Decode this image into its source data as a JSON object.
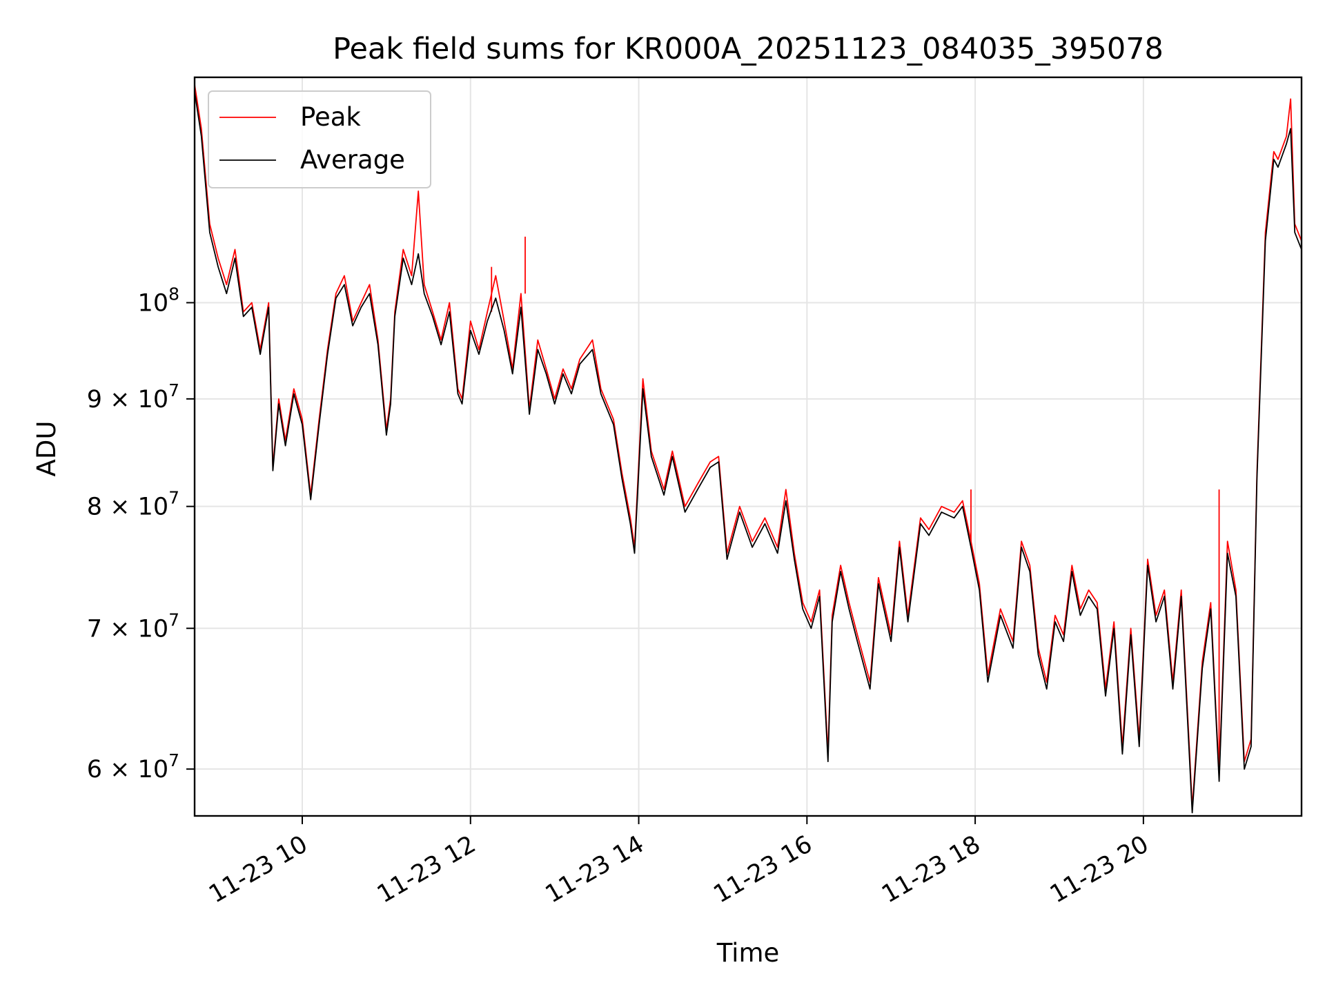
{
  "chart_data": {
    "type": "line",
    "title": "Peak field sums for KR000A_20251123_084035_395078",
    "xlabel": "Time",
    "ylabel": "ADU",
    "yscale": "log",
    "grid": true,
    "legend_position": "upper-left",
    "x_range_hours": [
      8.72,
      21.88
    ],
    "y_range": [
      57000000,
      128000000
    ],
    "x_ticks": [
      {
        "value": 10,
        "label": "11-23 10"
      },
      {
        "value": 12,
        "label": "11-23 12"
      },
      {
        "value": 14,
        "label": "11-23 14"
      },
      {
        "value": 16,
        "label": "11-23 16"
      },
      {
        "value": 18,
        "label": "11-23 18"
      },
      {
        "value": 20,
        "label": "11-23 20"
      }
    ],
    "y_ticks": [
      {
        "value": 60000000,
        "mantissa": "6",
        "exponent": "7"
      },
      {
        "value": 70000000,
        "mantissa": "7",
        "exponent": "7"
      },
      {
        "value": 80000000,
        "mantissa": "8",
        "exponent": "7"
      },
      {
        "value": 90000000,
        "mantissa": "9",
        "exponent": "7"
      },
      {
        "value": 100000000,
        "mantissa": "",
        "exponent": "8"
      }
    ],
    "x_hours": [
      8.72,
      8.8,
      8.9,
      9.0,
      9.1,
      9.2,
      9.3,
      9.4,
      9.5,
      9.6,
      9.65,
      9.72,
      9.8,
      9.9,
      10.0,
      10.1,
      10.2,
      10.3,
      10.4,
      10.5,
      10.6,
      10.7,
      10.8,
      10.9,
      11.0,
      11.05,
      11.1,
      11.2,
      11.3,
      11.38,
      11.45,
      11.55,
      11.65,
      11.75,
      11.85,
      11.9,
      12.0,
      12.1,
      12.2,
      12.3,
      12.4,
      12.5,
      12.6,
      12.7,
      12.8,
      12.9,
      13.0,
      13.1,
      13.2,
      13.3,
      13.45,
      13.55,
      13.7,
      13.8,
      13.9,
      13.95,
      14.05,
      14.15,
      14.3,
      14.4,
      14.55,
      14.7,
      14.85,
      14.95,
      15.05,
      15.2,
      15.35,
      15.5,
      15.65,
      15.75,
      15.85,
      15.95,
      16.05,
      16.15,
      16.25,
      16.3,
      16.4,
      16.5,
      16.6,
      16.75,
      16.85,
      17.0,
      17.1,
      17.2,
      17.35,
      17.45,
      17.6,
      17.75,
      17.85,
      17.95,
      18.05,
      18.15,
      18.3,
      18.45,
      18.55,
      18.65,
      18.75,
      18.85,
      18.95,
      19.05,
      19.15,
      19.25,
      19.35,
      19.45,
      19.55,
      19.65,
      19.75,
      19.85,
      19.95,
      20.05,
      20.15,
      20.25,
      20.35,
      20.45,
      20.55,
      20.58,
      20.7,
      20.8,
      20.9,
      21.0,
      21.1,
      21.2,
      21.28,
      21.35,
      21.45,
      21.55,
      21.6,
      21.7,
      21.75,
      21.8,
      21.88
    ],
    "series": [
      {
        "name": "Peak",
        "color": "#ff0000",
        "values": [
          127000000,
          121000000,
          109000000,
          105000000,
          102000000,
          106000000,
          99000000,
          100000000,
          95000000,
          100000000,
          83500000,
          90000000,
          86000000,
          91000000,
          88000000,
          81000000,
          88000000,
          95000000,
          101000000,
          103000000,
          98000000,
          100000000,
          102000000,
          96000000,
          87000000,
          90000000,
          99000000,
          106000000,
          103000000,
          113000000,
          102000000,
          99000000,
          96000000,
          100000000,
          91000000,
          90000000,
          98000000,
          95000000,
          99000000,
          103000000,
          98000000,
          93000000,
          101000000,
          89000000,
          96000000,
          93000000,
          90000000,
          93000000,
          91000000,
          94000000,
          96000000,
          91000000,
          88000000,
          83000000,
          79000000,
          76500000,
          92000000,
          85000000,
          81500000,
          85000000,
          80000000,
          82000000,
          84000000,
          84500000,
          76000000,
          80000000,
          77000000,
          79000000,
          76500000,
          81500000,
          76000000,
          72000000,
          70500000,
          73000000,
          61000000,
          71000000,
          75000000,
          72000000,
          69500000,
          66000000,
          74000000,
          69500000,
          77000000,
          71000000,
          79000000,
          78000000,
          80000000,
          79500000,
          80500000,
          77000000,
          73500000,
          66500000,
          71500000,
          69000000,
          77000000,
          75000000,
          68500000,
          66000000,
          71000000,
          69500000,
          75000000,
          71500000,
          73000000,
          72000000,
          65500000,
          70500000,
          61500000,
          70000000,
          62000000,
          75500000,
          71000000,
          73000000,
          66000000,
          73000000,
          61000000,
          57500000,
          67500000,
          72000000,
          59500000,
          77000000,
          73000000,
          60500000,
          62000000,
          83000000,
          108000000,
          118000000,
          117000000,
          120000000,
          125000000,
          109000000,
          107000000
        ],
        "spikes": [
          {
            "x": 11.38,
            "y": 113000000
          },
          {
            "x": 12.25,
            "y": 104000000
          },
          {
            "x": 12.65,
            "y": 107500000
          },
          {
            "x": 17.95,
            "y": 81500000
          },
          {
            "x": 20.9,
            "y": 81500000
          }
        ]
      },
      {
        "name": "Average",
        "color": "#000000",
        "values": [
          126000000,
          120000000,
          108000000,
          104000000,
          101000000,
          105000000,
          98500000,
          99500000,
          94500000,
          99500000,
          83200000,
          89500000,
          85500000,
          90500000,
          87500000,
          80600000,
          87500000,
          94500000,
          100500000,
          102000000,
          97500000,
          99500000,
          101000000,
          95500000,
          86500000,
          89500000,
          98500000,
          105000000,
          102000000,
          105500000,
          101000000,
          98500000,
          95500000,
          99000000,
          90500000,
          89500000,
          97000000,
          94500000,
          98000000,
          100500000,
          97000000,
          92500000,
          99500000,
          88500000,
          95000000,
          92500000,
          89500000,
          92500000,
          90500000,
          93500000,
          95000000,
          90500000,
          87500000,
          82500000,
          78500000,
          76000000,
          91000000,
          84500000,
          81000000,
          84500000,
          79500000,
          81500000,
          83500000,
          84000000,
          75500000,
          79500000,
          76500000,
          78500000,
          76000000,
          80500000,
          75500000,
          71500000,
          70000000,
          72500000,
          60500000,
          70500000,
          74500000,
          71500000,
          69000000,
          65500000,
          73500000,
          69000000,
          76500000,
          70500000,
          78500000,
          77500000,
          79500000,
          79000000,
          80000000,
          76500000,
          73000000,
          66000000,
          71000000,
          68500000,
          76500000,
          74500000,
          68000000,
          65500000,
          70500000,
          69000000,
          74500000,
          71000000,
          72500000,
          71500000,
          65000000,
          70000000,
          61000000,
          69500000,
          61500000,
          75000000,
          70500000,
          72500000,
          65500000,
          72500000,
          60500000,
          57200000,
          67000000,
          71500000,
          59200000,
          76000000,
          72500000,
          60000000,
          61500000,
          82500000,
          107000000,
          117000000,
          116000000,
          119000000,
          121000000,
          108000000,
          106000000
        ],
        "spikes": []
      }
    ]
  }
}
